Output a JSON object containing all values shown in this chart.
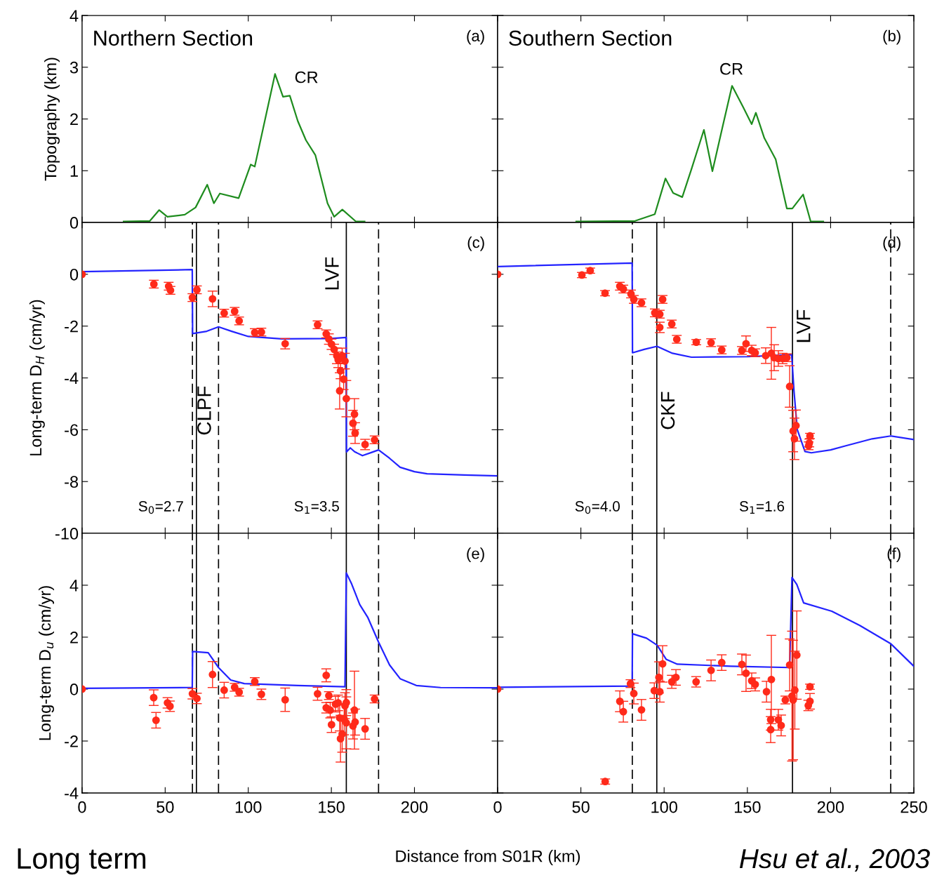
{
  "chart_data": [
    {
      "type": "line",
      "title": "Northern Section",
      "ylabel": "Topography (km)",
      "xlim": [
        0,
        250
      ],
      "ylim": [
        0,
        4
      ],
      "xticks": [
        0,
        50,
        100,
        150,
        200
      ],
      "yticks": [
        0,
        1,
        2,
        3,
        4
      ],
      "tick_labels": "y",
      "annotations": [
        "(a)",
        "CR"
      ],
      "series": [
        {
          "color": "#1e8c1e",
          "x": [
            25,
            40.8,
            46.4,
            51.3,
            61.8,
            68.3,
            75.3,
            79.3,
            82.9,
            94.2,
            101.5,
            103.9,
            116.1,
            120.9,
            125,
            129.8,
            134.7,
            140.4,
            147.7,
            151.7,
            156.6,
            164.7,
            170
          ],
          "values": [
            0.02,
            0.03,
            0.24,
            0.11,
            0.15,
            0.29,
            0.73,
            0.37,
            0.56,
            0.47,
            1.12,
            1.08,
            2.87,
            2.43,
            2.45,
            1.96,
            1.59,
            1.3,
            0.37,
            0.11,
            0.25,
            0.02,
            0.02
          ]
        }
      ]
    },
    {
      "type": "line",
      "title": "Southern Section",
      "xlim": [
        0,
        250
      ],
      "ylim": [
        0,
        4
      ],
      "xticks": [
        0,
        50,
        100,
        150,
        200,
        250
      ],
      "yticks": [
        0,
        1,
        2,
        3,
        4
      ],
      "tick_labels": false,
      "annotations": [
        "(b)",
        "CR"
      ],
      "series": [
        {
          "color": "#1e8c1e",
          "x": [
            47.2,
            82.6,
            94.4,
            100.8,
            105.4,
            110.9,
            116.3,
            123.9,
            129,
            134.9,
            140.8,
            147.6,
            152.6,
            155.1,
            160.2,
            167,
            173.7,
            177,
            183.5,
            188,
            195.6
          ],
          "values": [
            0.02,
            0.03,
            0.16,
            0.85,
            0.57,
            0.49,
            1.02,
            1.79,
            0.99,
            1.82,
            2.64,
            2.22,
            1.9,
            2.12,
            1.63,
            1.22,
            0.27,
            0.27,
            0.54,
            0.02,
            0.02
          ]
        }
      ]
    },
    {
      "type": "line",
      "ylabel": "Long-term D$_{H}$ (cm/yr)",
      "xlim": [
        0,
        250
      ],
      "ylim": [
        -10,
        2
      ],
      "xticks": [
        0,
        50,
        100,
        150,
        200
      ],
      "yticks": [
        -10,
        -8,
        -6,
        -4,
        -2,
        0
      ],
      "tick_labels": "y",
      "annotations": [
        "(c)",
        "S$_{0}$=2.7",
        "S$_{1}$=3.5"
      ],
      "ref_lines": [
        {
          "axis": "x",
          "value": 66.4,
          "color": "#000000",
          "line_style": "dashed"
        },
        {
          "axis": "x",
          "value": 68.8,
          "color": "#000000",
          "line_style": "solid"
        },
        {
          "axis": "x",
          "value": 82.1,
          "color": "#000000",
          "line_style": "dashed",
          "label": "CLPF"
        },
        {
          "axis": "x",
          "value": 159,
          "color": "#000000",
          "line_style": "solid",
          "label": "LVF"
        },
        {
          "axis": "x",
          "value": 178.4,
          "color": "#000000",
          "line_style": "dashed"
        }
      ],
      "series": [
        {
          "color": "#2323ff",
          "x": [
            0,
            66.3,
            66.5,
            75,
            82.1,
            90,
            100,
            120,
            150,
            158.9,
            159.1,
            161.4,
            164,
            168.7,
            174,
            178.4,
            185,
            191.4,
            200,
            207.6,
            230,
            250
          ],
          "values": [
            0.1,
            0.18,
            -2.29,
            -2.2,
            -2.03,
            -2.2,
            -2.4,
            -2.49,
            -2.48,
            -2.44,
            -6.86,
            -6.7,
            -6.85,
            -7.0,
            -6.88,
            -6.78,
            -7.1,
            -7.45,
            -7.62,
            -7.7,
            -7.75,
            -7.78
          ]
        },
        {
          "type": "scatter",
          "marker": "circle",
          "color": "#ff2a1a",
          "x": [
            0,
            43.2,
            52.1,
            53.2,
            66.4,
            69.1,
            78.5,
            85.5,
            91.8,
            94.5,
            103.9,
            107.9,
            122.2,
            141.7,
            146.9,
            148.5,
            150.1,
            151.7,
            153.3,
            154.1,
            156.5,
            158.2,
            155.5,
            157.4,
            155,
            159,
            163.9,
            163,
            164.3,
            170.3,
            176
          ],
          "values": [
            0,
            -0.38,
            -0.46,
            -0.62,
            -0.9,
            -0.6,
            -0.95,
            -1.5,
            -1.43,
            -1.8,
            -2.25,
            -2.23,
            -2.68,
            -1.95,
            -2.3,
            -2.5,
            -2.7,
            -2.9,
            -3.15,
            -3.3,
            -3.15,
            -3.35,
            -3.73,
            -4.05,
            -4.5,
            -4.8,
            -5.4,
            -5.75,
            -6.13,
            -6.57,
            -6.39
          ],
          "errors": [
            null,
            0.15,
            0.15,
            0.15,
            0.15,
            0.15,
            0.3,
            0.15,
            0.15,
            0.15,
            0.15,
            0.15,
            0.2,
            0.15,
            0.15,
            0.2,
            0.2,
            0.2,
            0.3,
            0.3,
            0.3,
            0.3,
            0.3,
            0.4,
            0.7,
            0.7,
            0.6,
            0.5,
            0.4,
            0.2,
            0.15
          ]
        }
      ]
    },
    {
      "type": "line",
      "xlim": [
        0,
        250
      ],
      "ylim": [
        -10,
        2
      ],
      "xticks": [
        0,
        50,
        100,
        150,
        200,
        250
      ],
      "yticks": [
        -10,
        -8,
        -6,
        -4,
        -2,
        0
      ],
      "tick_labels": false,
      "annotations": [
        "(d)",
        "S$_{0}$=4.0",
        "S$_{1}$=1.6"
      ],
      "ref_lines": [
        {
          "axis": "x",
          "value": 80.9,
          "color": "#000000",
          "line_style": "dashed"
        },
        {
          "axis": "x",
          "value": 95.6,
          "color": "#000000",
          "line_style": "solid",
          "label": "CKF"
        },
        {
          "axis": "x",
          "value": 177.1,
          "color": "#000000",
          "line_style": "solid",
          "label": "LVF"
        },
        {
          "axis": "x",
          "value": 236.1,
          "color": "#000000",
          "line_style": "dashed"
        }
      ],
      "series": [
        {
          "color": "#2323ff",
          "x": [
            0,
            80.8,
            81,
            88,
            95.7,
            105,
            116.4,
            150,
            176.6,
            178,
            180,
            184.6,
            188.4,
            200,
            209.1,
            225,
            236.1,
            250
          ],
          "values": [
            0.3,
            0.43,
            -3.03,
            -2.9,
            -2.78,
            -3.05,
            -3.2,
            -3.18,
            -3.1,
            -4.5,
            -6.0,
            -6.84,
            -6.89,
            -6.78,
            -6.62,
            -6.35,
            -6.24,
            -6.38
          ]
        },
        {
          "type": "scatter",
          "marker": "circle",
          "color": "#ff2a1a",
          "x": [
            0,
            50.6,
            55.6,
            64.5,
            73.4,
            75.5,
            80.1,
            81.8,
            86.4,
            94.4,
            97.4,
            97.4,
            99.1,
            104.6,
            107.6,
            119.3,
            128.2,
            134.6,
            146.7,
            149.2,
            152.6,
            154.7,
            161,
            164.4,
            166.1,
            168.6,
            171.2,
            173.7,
            175.4,
            177.5,
            179.2,
            178.3,
            187.6,
            186.8,
            187.2
          ],
          "values": [
            0,
            -0.03,
            0.14,
            -0.73,
            -0.46,
            -0.57,
            -0.76,
            -0.97,
            -1.1,
            -1.49,
            -1.54,
            -2.05,
            -0.97,
            -1.92,
            -2.51,
            -2.62,
            -2.64,
            -2.92,
            -2.94,
            -2.68,
            -2.94,
            -3.03,
            -3.14,
            -3.05,
            -3.22,
            -3.25,
            -3.25,
            -3.22,
            -4.33,
            -6.05,
            -5.84,
            -6.35,
            -6.24,
            -6.62,
            -6.51
          ],
          "errors": [
            null,
            0.1,
            0.1,
            0.1,
            0.15,
            0.15,
            0.15,
            0.15,
            0.15,
            0.15,
            0.15,
            0.2,
            0.15,
            0.15,
            0.15,
            0.1,
            0.15,
            0.15,
            0.15,
            0.3,
            0.2,
            0.15,
            0.3,
            1.0,
            0.5,
            0.3,
            0.2,
            0.15,
            0.8,
            0.8,
            0.6,
            0.8,
            0.1,
            0.15,
            0.15
          ]
        }
      ]
    },
    {
      "type": "line",
      "ylabel": "Long-term D$_{u}$ (cm/yr)",
      "xlabel": "Distance from S01R (km)",
      "xlim": [
        0,
        250
      ],
      "ylim": [
        -4,
        6
      ],
      "xticks": [
        0,
        50,
        100,
        150,
        200
      ],
      "yticks": [
        -4,
        -2,
        0,
        2,
        4
      ],
      "annotations": [
        "(e)",
        "Long term"
      ],
      "ref_lines": [
        {
          "axis": "x",
          "value": 66.4,
          "color": "#000000",
          "line_style": "dashed"
        },
        {
          "axis": "x",
          "value": 68.8,
          "color": "#000000",
          "line_style": "solid"
        },
        {
          "axis": "x",
          "value": 82.1,
          "color": "#000000",
          "line_style": "dashed"
        },
        {
          "axis": "x",
          "value": 159,
          "color": "#000000",
          "line_style": "solid"
        },
        {
          "axis": "x",
          "value": 178.4,
          "color": "#000000",
          "line_style": "dashed"
        }
      ],
      "series": [
        {
          "color": "#2323ff",
          "x": [
            0,
            66.3,
            66.5,
            75.9,
            82.1,
            89.4,
            97.6,
            130,
            158.2,
            159,
            162.2,
            167.1,
            172,
            178.4,
            185,
            191.4,
            201.1,
            215.7,
            250
          ],
          "values": [
            0.03,
            0.06,
            1.45,
            1.4,
            0.83,
            0.35,
            0.21,
            0.14,
            0.09,
            4.47,
            4.05,
            3.25,
            2.75,
            1.81,
            0.93,
            0.4,
            0.14,
            0.06,
            0.05
          ]
        },
        {
          "type": "scatter",
          "marker": "circle",
          "color": "#ff2a1a",
          "x": [
            0,
            43.1,
            44.5,
            51.4,
            52.9,
            66.4,
            69.1,
            78.5,
            85.5,
            91.8,
            94.5,
            103.9,
            107.9,
            122.2,
            141.7,
            146.9,
            148.5,
            146.9,
            150.1,
            149.3,
            152.5,
            154.1,
            155,
            155.5,
            156.5,
            157.7,
            158.2,
            159,
            159,
            163.9,
            163,
            164.3,
            170.3,
            176
          ],
          "values": [
            0,
            -0.33,
            -1.2,
            -0.53,
            -0.66,
            -0.18,
            -0.36,
            0.56,
            -0.04,
            0.07,
            -0.12,
            0.29,
            -0.2,
            -0.41,
            -0.18,
            0.53,
            -0.25,
            -0.72,
            -1.37,
            -0.81,
            -0.58,
            -0.53,
            -1.11,
            -1.91,
            -1.73,
            -1.16,
            -0.64,
            -0.52,
            -1.3,
            -0.81,
            -1.42,
            -1.27,
            -1.53,
            -0.38
          ],
          "errors": [
            null,
            0.3,
            0.3,
            0.2,
            0.2,
            0.2,
            0.2,
            0.5,
            0.3,
            0.15,
            0.15,
            0.15,
            0.2,
            0.45,
            0.25,
            0.25,
            0.15,
            0.2,
            0.3,
            0.3,
            0.3,
            0.3,
            0.5,
            0.9,
            0.7,
            0.6,
            0.5,
            0.5,
            1.0,
            1.5,
            0.5,
            0.5,
            0.4,
            0.15
          ]
        }
      ]
    },
    {
      "type": "line",
      "xlim": [
        0,
        250
      ],
      "ylim": [
        -4,
        6
      ],
      "xticks": [
        0,
        50,
        100,
        150,
        200,
        250
      ],
      "yticks": [
        -4,
        -2,
        0,
        2,
        4
      ],
      "tick_labels": "x",
      "annotations": [
        "(f)",
        "Hsu et al., 2003"
      ],
      "ref_lines": [
        {
          "axis": "x",
          "value": 80.9,
          "color": "#000000",
          "line_style": "dashed"
        },
        {
          "axis": "x",
          "value": 95.6,
          "color": "#000000",
          "line_style": "solid"
        },
        {
          "axis": "x",
          "value": 177.1,
          "color": "#000000",
          "line_style": "solid"
        },
        {
          "axis": "x",
          "value": 236.1,
          "color": "#000000",
          "line_style": "dashed"
        }
      ],
      "series": [
        {
          "color": "#2323ff",
          "x": [
            0,
            80.8,
            81,
            89.4,
            95.8,
            101.2,
            107.9,
            140,
            175.4,
            176.8,
            179.7,
            183.8,
            200.7,
            217.5,
            236.1,
            250
          ],
          "values": [
            0.07,
            0.12,
            2.13,
            1.96,
            1.69,
            1.15,
            0.96,
            0.88,
            0.83,
            4.3,
            4.03,
            3.32,
            3.0,
            2.45,
            1.75,
            0.88
          ]
        },
        {
          "type": "scatter",
          "marker": "circle",
          "color": "#ff2a1a",
          "x": [
            0,
            64.6,
            73.4,
            75.5,
            79.8,
            81.8,
            86.4,
            94.1,
            97.4,
            96.9,
            99.1,
            104.6,
            107.1,
            119.2,
            128.2,
            134.6,
            146.7,
            149.2,
            152.6,
            154.7,
            161.5,
            164.4,
            164,
            164,
            168.6,
            170.3,
            172.8,
            175.4,
            176.8,
            177.5,
            178.5,
            179.7,
            187.6,
            187.6,
            186.6
          ],
          "values": [
            0,
            -3.56,
            -0.47,
            -0.87,
            0.21,
            -0.17,
            -0.8,
            -0.06,
            -0.1,
            0.45,
            0.97,
            0.28,
            0.45,
            0.28,
            0.72,
            1.02,
            0.95,
            0.61,
            0.32,
            0.18,
            -0.1,
            0.37,
            -1.18,
            -1.56,
            -1.18,
            -1.4,
            -0.42,
            0.93,
            -0.27,
            -0.42,
            -0.04,
            1.31,
            0.09,
            -0.47,
            -0.63
          ],
          "errors": [
            null,
            0.1,
            0.4,
            0.4,
            0.15,
            0.4,
            0.4,
            0.3,
            0.4,
            0.6,
            0.7,
            0.25,
            0.3,
            0.2,
            0.4,
            0.3,
            0.4,
            0.7,
            0.3,
            0.25,
            0.4,
            1.7,
            0.4,
            0.5,
            0.4,
            0.4,
            0.15,
            1.0,
            2.5,
            2.3,
            1.5,
            1.7,
            0.1,
            0.3,
            0.2
          ]
        }
      ]
    }
  ]
}
